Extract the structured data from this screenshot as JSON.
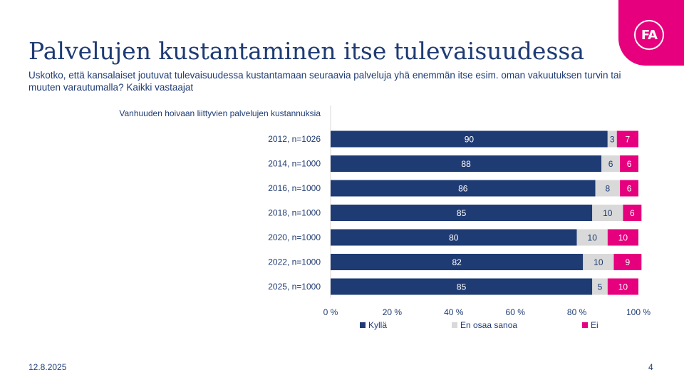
{
  "header": {
    "title": "Palvelujen kustantaminen itse tulevaisuudessa",
    "subtitle": "Uskotko, että kansalaiset joutuvat tulevaisuudessa kustantamaan seuraavia palveluja yhä enemmän itse esim. oman vakuutuksen turvin tai muuten varautumalla? Kaikki vastaajat",
    "logo_text": "FA"
  },
  "footer": {
    "date": "12.8.2025",
    "page": "4"
  },
  "colors": {
    "accent": "#e6007e",
    "navy": "#1f3b73",
    "grey": "#d9d9d9"
  },
  "chart_data": {
    "type": "bar",
    "orientation": "horizontal",
    "stacked": true,
    "group_label": "Vanhuuden hoivaan liittyvien palvelujen kustannuksia",
    "categories": [
      "2012, n=1026",
      "2014, n=1000",
      "2016, n=1000",
      "2018, n=1000",
      "2020, n=1000",
      "2022, n=1000",
      "2025, n=1000"
    ],
    "series": [
      {
        "name": "Kyllä",
        "color": "#1f3b73",
        "values": [
          90,
          88,
          86,
          85,
          80,
          82,
          85
        ]
      },
      {
        "name": "En osaa sanoa",
        "color": "#d9d9d9",
        "values": [
          3,
          6,
          8,
          10,
          10,
          10,
          5
        ]
      },
      {
        "name": "Ei",
        "color": "#e6007e",
        "values": [
          7,
          6,
          6,
          6,
          10,
          9,
          10
        ]
      }
    ],
    "xlim": [
      0,
      100
    ],
    "xticks": [
      "0 %",
      "20 %",
      "40 %",
      "60 %",
      "80 %",
      "100 %"
    ],
    "legend": "bottom",
    "grid": false
  }
}
